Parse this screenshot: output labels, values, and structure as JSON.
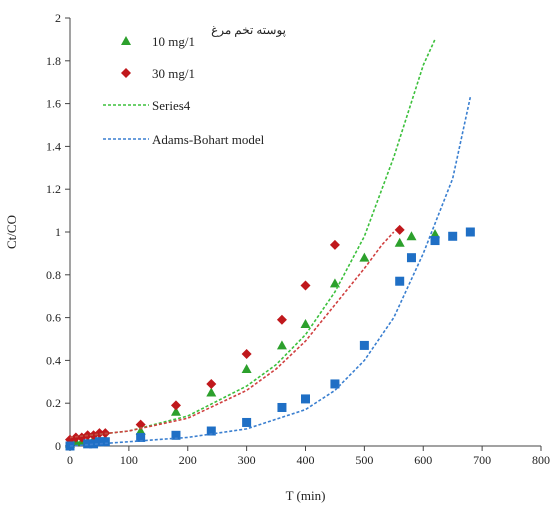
{
  "chart_data": {
    "type": "scatter",
    "title": "",
    "annotation": "پوسته تخم مرغ",
    "xlabel": "T (min)",
    "ylabel": "Ct/CO",
    "xlim": [
      0,
      800
    ],
    "ylim": [
      0,
      2
    ],
    "xticks": [
      0,
      100,
      200,
      300,
      400,
      500,
      600,
      700,
      800
    ],
    "yticks": [
      0,
      0.2,
      0.4,
      0.6,
      0.8,
      1,
      1.2,
      1.4,
      1.6,
      1.8,
      2
    ],
    "x_tick_labels": [
      "0",
      "100",
      "200",
      "300",
      "400",
      "500",
      "600",
      "700",
      "800"
    ],
    "y_tick_labels": [
      "0",
      "0.2",
      "0.4",
      "0.6",
      "0.8",
      "1",
      "1.2",
      "1.4",
      "1.6",
      "1.8",
      "2"
    ],
    "grid": false,
    "legend_position": "top-left",
    "series": [
      {
        "name": "10 mg/1",
        "kind": "scatter",
        "marker": "triangle",
        "color": "#2ca02c",
        "points": [
          [
            0,
            0.01
          ],
          [
            10,
            0.02
          ],
          [
            20,
            0.02
          ],
          [
            30,
            0.02
          ],
          [
            40,
            0.03
          ],
          [
            50,
            0.03
          ],
          [
            60,
            0.03
          ],
          [
            120,
            0.07
          ],
          [
            180,
            0.16
          ],
          [
            240,
            0.25
          ],
          [
            300,
            0.36
          ],
          [
            360,
            0.47
          ],
          [
            400,
            0.57
          ],
          [
            450,
            0.76
          ],
          [
            500,
            0.88
          ],
          [
            560,
            0.95
          ],
          [
            580,
            0.98
          ],
          [
            620,
            0.99
          ]
        ]
      },
      {
        "name": "30 mg/1",
        "kind": "scatter",
        "marker": "diamond",
        "color": "#c0181c",
        "points": [
          [
            0,
            0.03
          ],
          [
            10,
            0.04
          ],
          [
            20,
            0.04
          ],
          [
            30,
            0.05
          ],
          [
            40,
            0.05
          ],
          [
            50,
            0.06
          ],
          [
            60,
            0.06
          ],
          [
            120,
            0.1
          ],
          [
            180,
            0.19
          ],
          [
            240,
            0.29
          ],
          [
            300,
            0.43
          ],
          [
            360,
            0.59
          ],
          [
            400,
            0.75
          ],
          [
            450,
            0.94
          ],
          [
            560,
            1.01
          ]
        ]
      },
      {
        "name": "",
        "kind": "scatter",
        "marker": "square",
        "color": "#1f6fc5",
        "points": [
          [
            0,
            0.0
          ],
          [
            30,
            0.01
          ],
          [
            40,
            0.01
          ],
          [
            50,
            0.02
          ],
          [
            60,
            0.02
          ],
          [
            120,
            0.04
          ],
          [
            180,
            0.05
          ],
          [
            240,
            0.07
          ],
          [
            300,
            0.11
          ],
          [
            360,
            0.18
          ],
          [
            400,
            0.22
          ],
          [
            450,
            0.29
          ],
          [
            500,
            0.47
          ],
          [
            560,
            0.77
          ],
          [
            580,
            0.88
          ],
          [
            620,
            0.96
          ],
          [
            650,
            0.98
          ],
          [
            680,
            1.0
          ]
        ]
      },
      {
        "name": "Series4",
        "kind": "line",
        "dash": true,
        "color": "#3cc03c",
        "points": [
          [
            0,
            0.04
          ],
          [
            100,
            0.07
          ],
          [
            200,
            0.14
          ],
          [
            300,
            0.28
          ],
          [
            350,
            0.38
          ],
          [
            400,
            0.52
          ],
          [
            450,
            0.72
          ],
          [
            500,
            0.98
          ],
          [
            550,
            1.35
          ],
          [
            600,
            1.78
          ],
          [
            620,
            1.9
          ]
        ]
      },
      {
        "name": "",
        "kind": "line",
        "dash": true,
        "color": "#d04040",
        "points": [
          [
            0,
            0.04
          ],
          [
            100,
            0.07
          ],
          [
            200,
            0.13
          ],
          [
            300,
            0.26
          ],
          [
            350,
            0.36
          ],
          [
            400,
            0.49
          ],
          [
            450,
            0.66
          ],
          [
            500,
            0.83
          ],
          [
            530,
            0.94
          ],
          [
            550,
            1.0
          ]
        ]
      },
      {
        "name": "Adams-Bohart model",
        "kind": "line",
        "dash": true,
        "color": "#3a7fd0",
        "points": [
          [
            0,
            0.0
          ],
          [
            100,
            0.02
          ],
          [
            200,
            0.04
          ],
          [
            300,
            0.08
          ],
          [
            400,
            0.17
          ],
          [
            450,
            0.26
          ],
          [
            500,
            0.4
          ],
          [
            550,
            0.6
          ],
          [
            600,
            0.9
          ],
          [
            650,
            1.25
          ],
          [
            680,
            1.63
          ]
        ]
      }
    ]
  }
}
